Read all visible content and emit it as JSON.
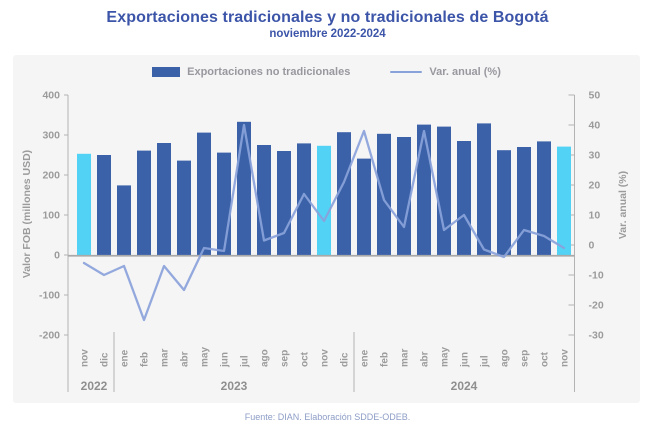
{
  "title": "Exportaciones tradicionales y no tradicionales de Bogotá",
  "subtitle": "noviembre 2022-2024",
  "footer": "Fuente: DIAN. Elaboración SDDE-ODEB.",
  "legend": [
    {
      "label": "Exportaciones no tradicionales",
      "type": "bar",
      "color": "#3b62a8"
    },
    {
      "label": "Var. anual (%)",
      "type": "line",
      "color": "#8aa2da"
    }
  ],
  "chart_data": {
    "type": "bar",
    "categories": [
      "nov",
      "dic",
      "ene",
      "feb",
      "mar",
      "abr",
      "may",
      "jun",
      "jul",
      "ago",
      "sep",
      "oct",
      "nov",
      "dic",
      "ene",
      "feb",
      "mar",
      "abr",
      "may",
      "jun",
      "jul",
      "ago",
      "sep",
      "oct",
      "nov"
    ],
    "year_groups": [
      {
        "label": "2022",
        "start": 0,
        "end": 1
      },
      {
        "label": "2023",
        "start": 2,
        "end": 13
      },
      {
        "label": "2024",
        "start": 14,
        "end": 24
      }
    ],
    "series": [
      {
        "name": "Exportaciones no tradicionales",
        "type": "bar",
        "axis": "left",
        "values": [
          253,
          250,
          174,
          261,
          280,
          236,
          306,
          256,
          333,
          275,
          260,
          279,
          273,
          307,
          241,
          303,
          295,
          326,
          321,
          285,
          329,
          262,
          270,
          284,
          271
        ],
        "color": "#3b62a8",
        "highlight_color": "#52d3f6",
        "highlight_indices": [
          0,
          12,
          24
        ]
      },
      {
        "name": "Var. anual (%)",
        "type": "line",
        "axis": "right",
        "values": [
          -6,
          -10,
          -7,
          -25,
          -7,
          -15,
          -1,
          -2,
          40,
          1.5,
          4,
          17,
          8,
          21,
          38,
          15,
          6,
          38,
          5,
          10,
          -1.5,
          -4,
          5,
          3,
          -1
        ],
        "color": "#8aa2da"
      }
    ],
    "left_axis": {
      "label": "Valor FOB (millones USD)",
      "min": -200,
      "max": 400,
      "step": 100
    },
    "right_axis": {
      "label": "Var. anual (%)",
      "min": -30,
      "max": 50,
      "step": 10
    },
    "grid": false,
    "legend_position": "top"
  },
  "colors": {
    "title": "#3c55a8",
    "panel_bg": "#f5f5f6",
    "axis_text": "#9b9b9b",
    "spine": "#b3b3b3",
    "baseline": "#a9a9a9",
    "year_text": "#8f8f8f"
  }
}
